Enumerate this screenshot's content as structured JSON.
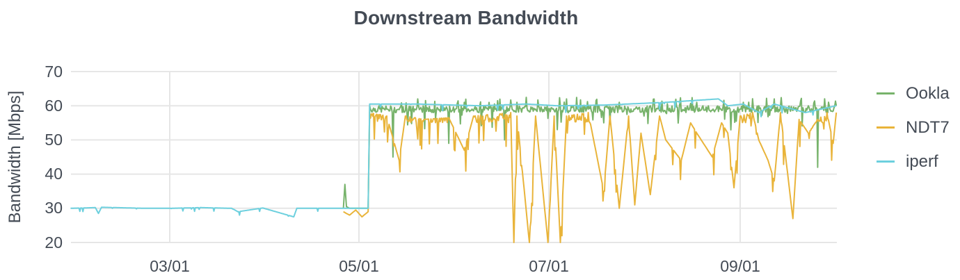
{
  "chart_data": {
    "type": "line",
    "title": "Downstream Bandwidth",
    "xlabel": "",
    "ylabel": "Bandwidth [Mbps]",
    "ylim": [
      20,
      70
    ],
    "yticks": [
      "70",
      "60",
      "50",
      "40",
      "30",
      "20"
    ],
    "xticks": [
      "03/01",
      "05/01",
      "07/01",
      "09/01"
    ],
    "grid": true,
    "legend_position": "right",
    "x_unit": "days since 03/01 (negative = before)",
    "x_range_days": [
      -32,
      215
    ],
    "series": [
      {
        "name": "Ookla",
        "color": "#77b36b",
        "points": [
          [
            56,
            30
          ],
          [
            56.5,
            37
          ],
          [
            57,
            30.5
          ],
          [
            58,
            30
          ],
          [
            64,
            30
          ],
          [
            64.5,
            60
          ],
          [
            70,
            59
          ],
          [
            72,
            45
          ],
          [
            73,
            58
          ],
          [
            80,
            62
          ],
          [
            85,
            58
          ],
          [
            90,
            49
          ],
          [
            95,
            61
          ],
          [
            100,
            60
          ],
          [
            105,
            59
          ],
          [
            108,
            50
          ],
          [
            112,
            61
          ],
          [
            120,
            59
          ],
          [
            125,
            53
          ],
          [
            128,
            62
          ],
          [
            135,
            59
          ],
          [
            140,
            55
          ],
          [
            145,
            61
          ],
          [
            150,
            59
          ],
          [
            155,
            60
          ],
          [
            160,
            58
          ],
          [
            170,
            61
          ],
          [
            180,
            59
          ],
          [
            185,
            61
          ],
          [
            190,
            60
          ],
          [
            195,
            62
          ],
          [
            200,
            59
          ],
          [
            205,
            58
          ],
          [
            209,
            42
          ],
          [
            210,
            59
          ],
          [
            215,
            60
          ]
        ]
      },
      {
        "name": "NDT7",
        "color": "#e9b43a",
        "points": [
          [
            56,
            29
          ],
          [
            58,
            28
          ],
          [
            60,
            29.5
          ],
          [
            62,
            27.5
          ],
          [
            64,
            29
          ],
          [
            64.5,
            58
          ],
          [
            70,
            57
          ],
          [
            74,
            44
          ],
          [
            76,
            57
          ],
          [
            82,
            56
          ],
          [
            90,
            56.5
          ],
          [
            95,
            47
          ],
          [
            98,
            57
          ],
          [
            110,
            58
          ],
          [
            111,
            20
          ],
          [
            112,
            57
          ],
          [
            116,
            20
          ],
          [
            118,
            57
          ],
          [
            122,
            20
          ],
          [
            124,
            57
          ],
          [
            126,
            20
          ],
          [
            128,
            57
          ],
          [
            135,
            58
          ],
          [
            140,
            35
          ],
          [
            142,
            57
          ],
          [
            145,
            30
          ],
          [
            148,
            57
          ],
          [
            150,
            31
          ],
          [
            152,
            52
          ],
          [
            155,
            34
          ],
          [
            158,
            57
          ],
          [
            160,
            50
          ],
          [
            165,
            44
          ],
          [
            168,
            55
          ],
          [
            170,
            52
          ],
          [
            175,
            45
          ],
          [
            178,
            55
          ],
          [
            180,
            52
          ],
          [
            182,
            36
          ],
          [
            184,
            57
          ],
          [
            188,
            58
          ],
          [
            190,
            50
          ],
          [
            193,
            44
          ],
          [
            195,
            38
          ],
          [
            197,
            58
          ],
          [
            201,
            27
          ],
          [
            203,
            56
          ],
          [
            206,
            52
          ],
          [
            209,
            56
          ],
          [
            212,
            58
          ],
          [
            214,
            49
          ],
          [
            215,
            58
          ]
        ]
      },
      {
        "name": "iperf",
        "color": "#6dd0de",
        "points": [
          [
            -32,
            30
          ],
          [
            -24,
            30.2
          ],
          [
            -23,
            28.5
          ],
          [
            -22,
            30.3
          ],
          [
            -8,
            30
          ],
          [
            0,
            30
          ],
          [
            10,
            30.2
          ],
          [
            20,
            30
          ],
          [
            22,
            29
          ],
          [
            30,
            30.1
          ],
          [
            40,
            27.5
          ],
          [
            41,
            30
          ],
          [
            56,
            30
          ],
          [
            64,
            30
          ],
          [
            64.5,
            60.5
          ],
          [
            80,
            60.5
          ],
          [
            100,
            60
          ],
          [
            115,
            60.5
          ],
          [
            125,
            60
          ],
          [
            140,
            60.2
          ],
          [
            160,
            61
          ],
          [
            177,
            62
          ],
          [
            180,
            60
          ],
          [
            185,
            60.5
          ],
          [
            190,
            58
          ],
          [
            195,
            60.5
          ],
          [
            205,
            58
          ],
          [
            215,
            60
          ]
        ]
      }
    ]
  },
  "legend": {
    "items": [
      {
        "label": "Ookla",
        "color": "#77b36b"
      },
      {
        "label": "NDT7",
        "color": "#e9b43a"
      },
      {
        "label": "iperf",
        "color": "#6dd0de"
      }
    ]
  }
}
